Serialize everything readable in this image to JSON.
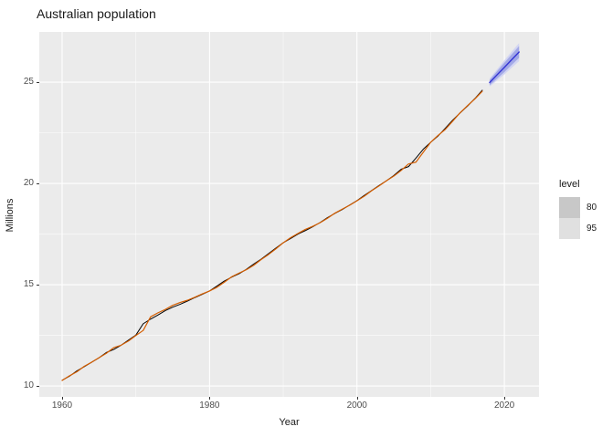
{
  "title": "Australian population",
  "axes": {
    "x": {
      "label": "Year",
      "ticks": [
        1960,
        1980,
        2000,
        2020
      ],
      "minor": [
        1970,
        1990,
        2010
      ]
    },
    "y": {
      "label": "Millions",
      "ticks": [
        10,
        15,
        20,
        25
      ],
      "minor": [
        12.5,
        17.5,
        22.5
      ]
    }
  },
  "legend": {
    "title": "level",
    "items": [
      {
        "label": "80",
        "color": "#c8c8c8"
      },
      {
        "label": "95",
        "color": "#e0e0e0"
      }
    ]
  },
  "colors": {
    "panel_bg": "#ebebeb",
    "grid": "#ffffff",
    "actual": "#000000",
    "fitted": "#D55E00",
    "forecast": "#3434d4",
    "band80": "#a3a9e7",
    "band95": "#d2d5f2",
    "tick": "#333333",
    "tick_label": "#4d4d4d",
    "text": "#1a1a1a"
  },
  "chart_data": {
    "type": "line",
    "title": "Australian population",
    "xlabel": "Year",
    "ylabel": "Millions",
    "xlim": [
      1956.9,
      2024.7
    ],
    "ylim": [
      9.46,
      27.48
    ],
    "grid": true,
    "legend_position": "right",
    "series": [
      {
        "name": "actual",
        "color": "#000000",
        "x_start": 1960,
        "values": [
          10.28,
          10.48,
          10.74,
          10.95,
          11.17,
          11.39,
          11.65,
          11.8,
          12.01,
          12.26,
          12.51,
          13.07,
          13.3,
          13.5,
          13.72,
          13.89,
          14.03,
          14.19,
          14.36,
          14.52,
          14.69,
          14.93,
          15.18,
          15.37,
          15.54,
          15.76,
          16.02,
          16.26,
          16.53,
          16.81,
          17.07,
          17.28,
          17.5,
          17.67,
          17.86,
          18.07,
          18.31,
          18.52,
          18.71,
          18.93,
          19.15,
          19.41,
          19.65,
          19.9,
          20.13,
          20.39,
          20.7,
          20.83,
          21.25,
          21.69,
          22.03,
          22.34,
          22.73,
          23.13,
          23.48,
          23.82,
          24.19,
          24.6
        ]
      },
      {
        "name": "fitted",
        "color": "#D55E00",
        "x_start": 1960,
        "values": [
          10.27,
          10.5,
          10.7,
          10.97,
          11.17,
          11.39,
          11.61,
          11.89,
          12.01,
          12.22,
          12.49,
          12.74,
          13.41,
          13.61,
          13.78,
          13.98,
          14.12,
          14.23,
          14.38,
          14.54,
          14.69,
          14.87,
          15.12,
          15.39,
          15.57,
          15.74,
          15.96,
          16.24,
          16.49,
          16.77,
          17.07,
          17.32,
          17.53,
          17.73,
          17.88,
          18.06,
          18.28,
          18.53,
          18.73,
          18.92,
          19.14,
          19.37,
          19.64,
          19.88,
          20.13,
          20.36,
          20.64,
          20.96,
          21.05,
          21.54,
          22.03,
          22.37,
          22.67,
          23.08,
          23.49,
          23.84,
          24.17,
          24.55
        ]
      },
      {
        "name": "forecast",
        "color": "#3434d4",
        "x": [
          2018,
          2019,
          2020,
          2021,
          2022
        ],
        "values": [
          24.98,
          25.36,
          25.73,
          26.11,
          26.49
        ]
      }
    ],
    "intervals": {
      "years": [
        2018,
        2019,
        2020,
        2021,
        2022
      ],
      "lo80": [
        24.85,
        25.17,
        25.5,
        25.85,
        26.2
      ],
      "hi80": [
        25.11,
        25.54,
        25.96,
        26.37,
        26.78
      ],
      "lo95": [
        24.78,
        25.08,
        25.38,
        25.71,
        26.04
      ],
      "hi95": [
        25.18,
        25.63,
        26.08,
        26.51,
        26.93
      ]
    }
  }
}
